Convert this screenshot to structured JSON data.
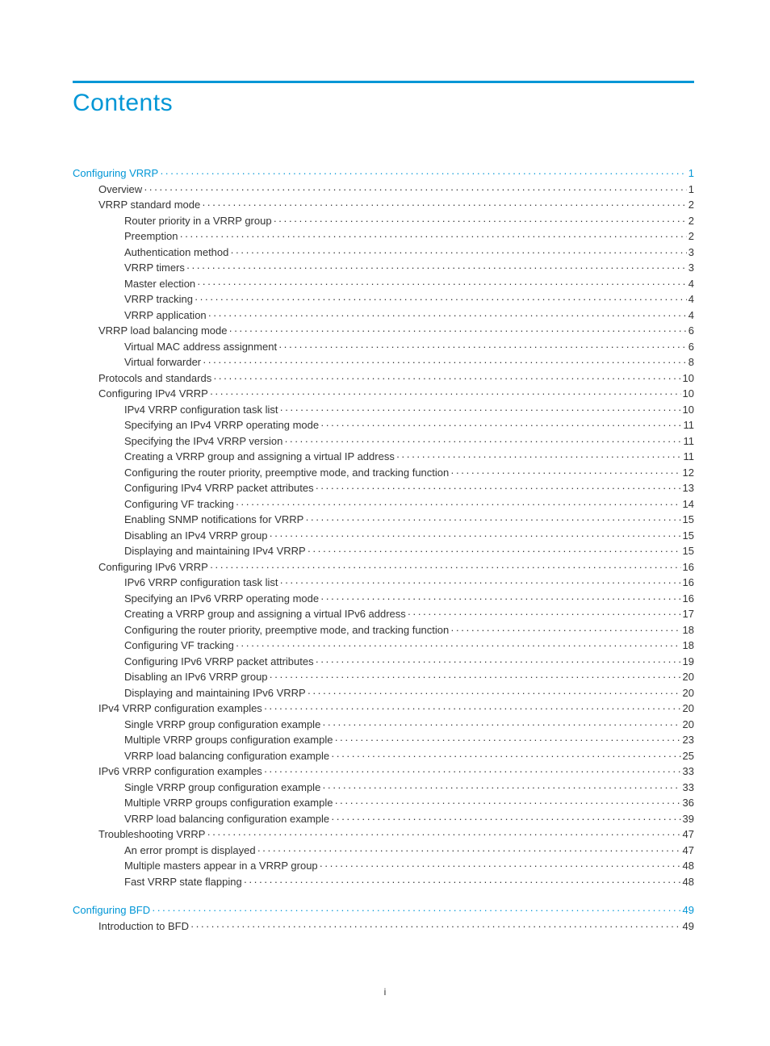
{
  "title": "Contents",
  "footer_page_number": "i",
  "colors": {
    "accent": "#0096d6",
    "text": "#333333",
    "background": "#ffffff"
  },
  "toc": {
    "blocks": [
      {
        "entries": [
          {
            "level": 0,
            "label": "Configuring VRRP",
            "page": "1"
          },
          {
            "level": 1,
            "label": "Overview",
            "page": "1"
          },
          {
            "level": 1,
            "label": "VRRP standard mode",
            "page": "2"
          },
          {
            "level": 2,
            "label": "Router priority in a VRRP group",
            "page": "2"
          },
          {
            "level": 2,
            "label": "Preemption",
            "page": "2"
          },
          {
            "level": 2,
            "label": "Authentication method",
            "page": "3"
          },
          {
            "level": 2,
            "label": "VRRP timers",
            "page": "3"
          },
          {
            "level": 2,
            "label": "Master election",
            "page": "4"
          },
          {
            "level": 2,
            "label": "VRRP tracking",
            "page": "4"
          },
          {
            "level": 2,
            "label": "VRRP application",
            "page": "4"
          },
          {
            "level": 1,
            "label": "VRRP load balancing mode",
            "page": "6"
          },
          {
            "level": 2,
            "label": "Virtual MAC address assignment",
            "page": "6"
          },
          {
            "level": 2,
            "label": "Virtual forwarder",
            "page": "8"
          },
          {
            "level": 1,
            "label": "Protocols and standards",
            "page": "10"
          },
          {
            "level": 1,
            "label": "Configuring IPv4 VRRP",
            "page": "10"
          },
          {
            "level": 2,
            "label": "IPv4 VRRP configuration task list",
            "page": "10"
          },
          {
            "level": 2,
            "label": "Specifying an IPv4 VRRP operating mode",
            "page": "11"
          },
          {
            "level": 2,
            "label": "Specifying the IPv4 VRRP version",
            "page": "11"
          },
          {
            "level": 2,
            "label": "Creating a VRRP group and assigning a virtual IP address",
            "page": "11"
          },
          {
            "level": 2,
            "label": "Configuring the router priority, preemptive mode, and tracking function",
            "page": "12"
          },
          {
            "level": 2,
            "label": "Configuring IPv4 VRRP packet attributes",
            "page": "13"
          },
          {
            "level": 2,
            "label": "Configuring VF tracking",
            "page": "14"
          },
          {
            "level": 2,
            "label": "Enabling SNMP notifications for VRRP",
            "page": "15"
          },
          {
            "level": 2,
            "label": "Disabling an IPv4 VRRP group",
            "page": "15"
          },
          {
            "level": 2,
            "label": "Displaying and maintaining IPv4 VRRP",
            "page": "15"
          },
          {
            "level": 1,
            "label": "Configuring IPv6 VRRP",
            "page": "16"
          },
          {
            "level": 2,
            "label": "IPv6 VRRP configuration task list",
            "page": "16"
          },
          {
            "level": 2,
            "label": "Specifying an IPv6 VRRP operating mode",
            "page": "16"
          },
          {
            "level": 2,
            "label": "Creating a VRRP group and assigning a virtual IPv6 address",
            "page": "17"
          },
          {
            "level": 2,
            "label": "Configuring the router priority, preemptive mode, and tracking function",
            "page": "18"
          },
          {
            "level": 2,
            "label": "Configuring VF tracking",
            "page": "18"
          },
          {
            "level": 2,
            "label": "Configuring IPv6 VRRP packet attributes",
            "page": "19"
          },
          {
            "level": 2,
            "label": "Disabling an IPv6 VRRP group",
            "page": "20"
          },
          {
            "level": 2,
            "label": "Displaying and maintaining IPv6 VRRP",
            "page": "20"
          },
          {
            "level": 1,
            "label": "IPv4 VRRP configuration examples",
            "page": "20"
          },
          {
            "level": 2,
            "label": "Single VRRP group configuration example",
            "page": "20"
          },
          {
            "level": 2,
            "label": "Multiple VRRP groups configuration example",
            "page": "23"
          },
          {
            "level": 2,
            "label": "VRRP load balancing configuration example",
            "page": "25"
          },
          {
            "level": 1,
            "label": "IPv6 VRRP configuration examples",
            "page": "33"
          },
          {
            "level": 2,
            "label": "Single VRRP group configuration example",
            "page": "33"
          },
          {
            "level": 2,
            "label": "Multiple VRRP groups configuration example",
            "page": "36"
          },
          {
            "level": 2,
            "label": "VRRP load balancing configuration example",
            "page": "39"
          },
          {
            "level": 1,
            "label": "Troubleshooting VRRP",
            "page": "47"
          },
          {
            "level": 2,
            "label": "An error prompt is displayed",
            "page": "47"
          },
          {
            "level": 2,
            "label": "Multiple masters appear in a VRRP group",
            "page": "48"
          },
          {
            "level": 2,
            "label": "Fast VRRP state flapping",
            "page": "48"
          }
        ]
      },
      {
        "entries": [
          {
            "level": 0,
            "label": "Configuring BFD",
            "page": "49"
          },
          {
            "level": 1,
            "label": "Introduction to BFD",
            "page": "49"
          }
        ]
      }
    ]
  }
}
